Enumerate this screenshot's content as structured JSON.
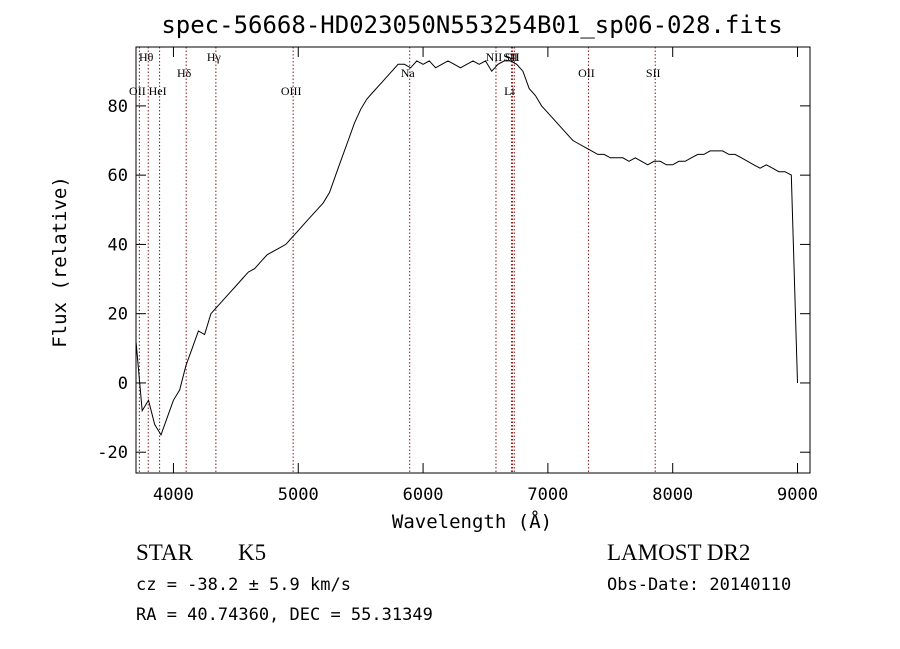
{
  "chart_data": {
    "type": "line",
    "title": "spec-56668-HD023050N553254B01_sp06-028.fits",
    "xlabel": "Wavelength (Å)",
    "ylabel": "Flux (relative)",
    "xlim": [
      3700,
      9100
    ],
    "ylim": [
      -26,
      97
    ],
    "xticks": [
      4000,
      5000,
      6000,
      7000,
      8000,
      9000
    ],
    "yticks": [
      -20,
      0,
      20,
      40,
      60,
      80
    ],
    "grid": false,
    "line_color": "#000000",
    "series": [
      {
        "x": [
          3700,
          3750,
          3800,
          3850,
          3900,
          3950,
          4000,
          4050,
          4100,
          4150,
          4200,
          4250,
          4300,
          4350,
          4400,
          4450,
          4500,
          4550,
          4600,
          4650,
          4700,
          4750,
          4800,
          4850,
          4900,
          4950,
          5000,
          5050,
          5100,
          5150,
          5200,
          5250,
          5300,
          5350,
          5400,
          5450,
          5500,
          5550,
          5600,
          5650,
          5700,
          5750,
          5800,
          5850,
          5900,
          5950,
          6000,
          6050,
          6100,
          6150,
          6200,
          6250,
          6300,
          6350,
          6400,
          6450,
          6500,
          6550,
          6600,
          6650,
          6700,
          6750,
          6800,
          6850,
          6900,
          6950,
          7000,
          7050,
          7100,
          7150,
          7200,
          7250,
          7300,
          7350,
          7400,
          7450,
          7500,
          7550,
          7600,
          7650,
          7700,
          7750,
          7800,
          7850,
          7900,
          7950,
          8000,
          8050,
          8100,
          8150,
          8200,
          8250,
          8300,
          8350,
          8400,
          8450,
          8500,
          8550,
          8600,
          8650,
          8700,
          8750,
          8800,
          8850,
          8900,
          8950,
          9000
        ],
        "y": [
          12,
          -8,
          -5,
          -12,
          -15,
          -10,
          -5,
          -2,
          5,
          10,
          15,
          14,
          20,
          22,
          24,
          26,
          28,
          30,
          32,
          33,
          35,
          37,
          38,
          39,
          40,
          42,
          44,
          46,
          48,
          50,
          52,
          55,
          60,
          65,
          70,
          75,
          79,
          82,
          84,
          86,
          88,
          90,
          92,
          92,
          91,
          93,
          92,
          93,
          91,
          92,
          93,
          92,
          91,
          92,
          93,
          92,
          93,
          90,
          92,
          93,
          93,
          92,
          90,
          85,
          83,
          80,
          78,
          76,
          74,
          72,
          70,
          69,
          68,
          67,
          66,
          66,
          65,
          65,
          65,
          64,
          65,
          64,
          63,
          64,
          64,
          63,
          63,
          64,
          64,
          65,
          66,
          66,
          67,
          67,
          67,
          66,
          66,
          65,
          64,
          63,
          62,
          63,
          62,
          61,
          61,
          60,
          0
        ]
      }
    ],
    "lines": [
      {
        "label": "Hθ",
        "x": 3798,
        "row": 1
      },
      {
        "label": "OII",
        "x": 3727,
        "row": 3
      },
      {
        "label": "HeI",
        "x": 3889,
        "row": 3
      },
      {
        "label": "Hδ",
        "x": 4102,
        "row": 2
      },
      {
        "label": "Hγ",
        "x": 4340,
        "row": 1
      },
      {
        "label": "OIII",
        "x": 4959,
        "row": 3
      },
      {
        "label": "Na",
        "x": 5893,
        "row": 2
      },
      {
        "label": "NII",
        "x": 6584,
        "row": 1
      },
      {
        "label": "SII",
        "x": 6717,
        "row": 1
      },
      {
        "label": "Li",
        "x": 6708,
        "row": 3
      },
      {
        "label": "SII",
        "x": 6731,
        "row": 1
      },
      {
        "label": "OII",
        "x": 7325,
        "row": 2
      },
      {
        "label": "SII",
        "x": 7860,
        "row": 2
      }
    ],
    "line_marker_color": "#8b1a1a"
  },
  "footer": {
    "object_class": "STAR",
    "subclass": "K5",
    "survey": "LAMOST DR2",
    "cz_text": "cz = -38.2 ± 5.9 km/s",
    "obs_date": "Obs-Date: 20140110",
    "coords": "RA =  40.74360, DEC =  55.31349"
  }
}
